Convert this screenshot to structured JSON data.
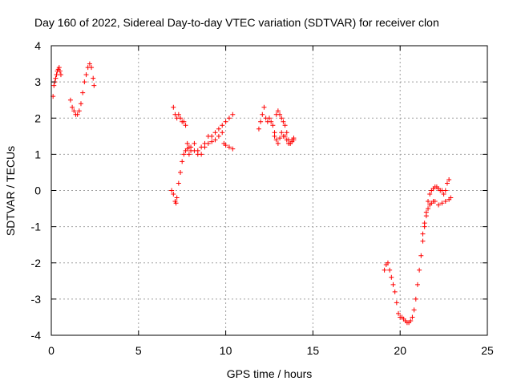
{
  "chart_data": {
    "type": "scatter",
    "title": "Day 160 of 2022, Sidereal Day-to-day VTEC variation (SDTVAR) for receiver clon",
    "xlabel": "GPS time / hours",
    "ylabel": "SDTVAR / TECUs",
    "xlim": [
      0,
      25
    ],
    "ylim": [
      -4,
      4
    ],
    "xticks": [
      0,
      5,
      10,
      15,
      20,
      25
    ],
    "yticks": [
      -4,
      -3,
      -2,
      -1,
      0,
      1,
      2,
      3,
      4
    ],
    "xtick_labels": [
      "0",
      "5",
      "10",
      "15",
      "20",
      "25"
    ],
    "ytick_labels": [
      "-4",
      "-3",
      "-2",
      "-1",
      "0",
      "1",
      "2",
      "3",
      "4"
    ],
    "grid": true,
    "marker": "+",
    "color": "#ff0000",
    "segments": [
      {
        "name": "segment-1",
        "points": [
          [
            0.1,
            2.6
          ],
          [
            0.15,
            2.9
          ],
          [
            0.2,
            3.0
          ],
          [
            0.25,
            3.1
          ],
          [
            0.3,
            3.2
          ],
          [
            0.35,
            3.3
          ],
          [
            0.4,
            3.35
          ],
          [
            0.45,
            3.4
          ],
          [
            0.5,
            3.3
          ],
          [
            0.55,
            3.2
          ]
        ]
      },
      {
        "name": "segment-2",
        "points": [
          [
            1.1,
            2.5
          ],
          [
            1.2,
            2.3
          ],
          [
            1.3,
            2.2
          ],
          [
            1.4,
            2.1
          ],
          [
            1.5,
            2.1
          ],
          [
            1.6,
            2.2
          ],
          [
            1.7,
            2.4
          ],
          [
            1.8,
            2.7
          ],
          [
            1.9,
            3.0
          ],
          [
            2.0,
            3.2
          ],
          [
            2.1,
            3.4
          ],
          [
            2.2,
            3.5
          ],
          [
            2.3,
            3.4
          ],
          [
            2.4,
            3.1
          ],
          [
            2.45,
            2.9
          ]
        ]
      },
      {
        "name": "segment-3",
        "points": [
          [
            6.9,
            0.0
          ],
          [
            7.0,
            -0.1
          ],
          [
            7.1,
            -0.3
          ],
          [
            7.15,
            -0.35
          ],
          [
            7.2,
            -0.2
          ],
          [
            7.3,
            0.2
          ],
          [
            7.4,
            0.5
          ],
          [
            7.5,
            0.8
          ],
          [
            7.6,
            1.0
          ],
          [
            7.7,
            1.1
          ],
          [
            7.8,
            1.15
          ],
          [
            7.9,
            1.2
          ],
          [
            8.0,
            1.2
          ],
          [
            8.2,
            1.3
          ],
          [
            8.4,
            1.1
          ],
          [
            8.6,
            1.2
          ],
          [
            8.8,
            1.3
          ],
          [
            9.0,
            1.5
          ],
          [
            9.2,
            1.5
          ],
          [
            9.4,
            1.6
          ],
          [
            9.6,
            1.7
          ],
          [
            9.8,
            1.8
          ],
          [
            10.0,
            1.9
          ],
          [
            10.2,
            2.0
          ],
          [
            10.4,
            2.1
          ]
        ]
      },
      {
        "name": "segment-4",
        "points": [
          [
            7.0,
            2.3
          ],
          [
            7.1,
            2.1
          ],
          [
            7.2,
            2.0
          ],
          [
            7.3,
            2.1
          ],
          [
            7.4,
            2.0
          ],
          [
            7.5,
            1.9
          ],
          [
            7.6,
            1.9
          ],
          [
            7.7,
            1.8
          ],
          [
            7.8,
            1.3
          ],
          [
            7.9,
            1.0
          ],
          [
            8.0,
            1.1
          ],
          [
            8.2,
            1.1
          ],
          [
            8.4,
            1.0
          ],
          [
            8.6,
            1.0
          ],
          [
            8.8,
            1.2
          ],
          [
            9.0,
            1.3
          ],
          [
            9.2,
            1.35
          ],
          [
            9.4,
            1.4
          ],
          [
            9.6,
            1.5
          ],
          [
            9.8,
            1.6
          ],
          [
            9.9,
            1.3
          ],
          [
            10.0,
            1.25
          ],
          [
            10.2,
            1.2
          ],
          [
            10.4,
            1.15
          ]
        ]
      },
      {
        "name": "segment-5",
        "points": [
          [
            11.9,
            1.7
          ],
          [
            12.0,
            1.9
          ],
          [
            12.1,
            2.1
          ],
          [
            12.2,
            2.3
          ],
          [
            12.3,
            2.0
          ],
          [
            12.4,
            1.9
          ],
          [
            12.5,
            2.0
          ],
          [
            12.6,
            1.9
          ],
          [
            12.7,
            1.8
          ],
          [
            12.8,
            1.6
          ],
          [
            12.9,
            2.1
          ],
          [
            13.0,
            2.2
          ],
          [
            13.1,
            2.1
          ],
          [
            13.2,
            2.0
          ],
          [
            13.3,
            1.9
          ],
          [
            13.4,
            1.8
          ],
          [
            13.5,
            1.6
          ],
          [
            13.6,
            1.4
          ],
          [
            13.7,
            1.3
          ],
          [
            13.8,
            1.4
          ],
          [
            13.9,
            1.45
          ]
        ]
      },
      {
        "name": "segment-6",
        "points": [
          [
            12.8,
            1.5
          ],
          [
            12.9,
            1.4
          ],
          [
            13.0,
            1.3
          ],
          [
            13.1,
            1.45
          ],
          [
            13.2,
            1.6
          ],
          [
            13.3,
            1.5
          ],
          [
            13.4,
            1.5
          ],
          [
            13.5,
            1.4
          ],
          [
            13.6,
            1.3
          ],
          [
            13.7,
            1.3
          ],
          [
            13.8,
            1.35
          ],
          [
            13.9,
            1.4
          ]
        ]
      },
      {
        "name": "segment-7",
        "points": [
          [
            19.1,
            -2.2
          ],
          [
            19.2,
            -2.05
          ],
          [
            19.3,
            -2.0
          ],
          [
            19.4,
            -2.2
          ],
          [
            19.5,
            -2.4
          ],
          [
            19.6,
            -2.6
          ],
          [
            19.7,
            -2.8
          ],
          [
            19.8,
            -3.1
          ],
          [
            19.9,
            -3.4
          ],
          [
            20.0,
            -3.5
          ],
          [
            20.1,
            -3.5
          ],
          [
            20.2,
            -3.55
          ],
          [
            20.3,
            -3.6
          ],
          [
            20.4,
            -3.65
          ],
          [
            20.5,
            -3.65
          ],
          [
            20.6,
            -3.6
          ],
          [
            20.7,
            -3.5
          ],
          [
            20.8,
            -3.3
          ],
          [
            20.9,
            -3.0
          ],
          [
            21.0,
            -2.6
          ],
          [
            21.1,
            -2.2
          ],
          [
            21.2,
            -1.8
          ],
          [
            21.3,
            -1.4
          ],
          [
            21.4,
            -1.0
          ],
          [
            21.5,
            -0.7
          ],
          [
            21.6,
            -0.5
          ],
          [
            21.7,
            -0.4
          ],
          [
            21.8,
            -0.35
          ],
          [
            21.9,
            -0.3
          ],
          [
            22.0,
            -0.3
          ],
          [
            22.2,
            -0.4
          ],
          [
            22.4,
            -0.35
          ],
          [
            22.6,
            -0.3
          ],
          [
            22.8,
            -0.25
          ],
          [
            22.9,
            -0.2
          ]
        ]
      },
      {
        "name": "segment-8",
        "points": [
          [
            21.3,
            -1.2
          ],
          [
            21.4,
            -0.9
          ],
          [
            21.5,
            -0.6
          ],
          [
            21.6,
            -0.3
          ],
          [
            21.7,
            -0.1
          ],
          [
            21.8,
            0.0
          ],
          [
            21.9,
            0.05
          ],
          [
            22.0,
            0.1
          ],
          [
            22.1,
            0.1
          ],
          [
            22.2,
            0.05
          ],
          [
            22.3,
            0.0
          ],
          [
            22.4,
            0.0
          ],
          [
            22.5,
            -0.1
          ],
          [
            22.6,
            0.0
          ],
          [
            22.7,
            0.2
          ],
          [
            22.8,
            0.3
          ]
        ]
      }
    ]
  }
}
